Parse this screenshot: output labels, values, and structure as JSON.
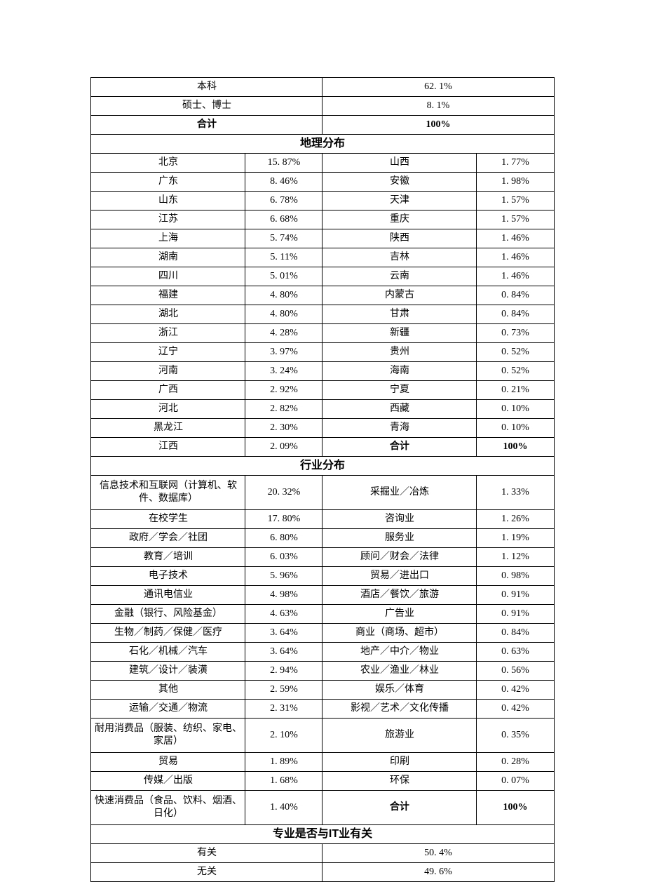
{
  "education": {
    "rows": [
      {
        "label": "本科",
        "value": "62. 1%"
      },
      {
        "label": "硕士、博士",
        "value": "8. 1%"
      }
    ],
    "total_label": "合计",
    "total_value": "100%"
  },
  "geo": {
    "header": "地理分布",
    "rows": [
      [
        "北京",
        "15. 87%",
        "山西",
        "1. 77%"
      ],
      [
        "广东",
        "8. 46%",
        "安徽",
        "1. 98%"
      ],
      [
        "山东",
        "6. 78%",
        "天津",
        "1. 57%"
      ],
      [
        "江苏",
        "6. 68%",
        "重庆",
        "1. 57%"
      ],
      [
        "上海",
        "5. 74%",
        "陕西",
        "1. 46%"
      ],
      [
        "湖南",
        "5. 11%",
        "吉林",
        "1. 46%"
      ],
      [
        "四川",
        "5. 01%",
        "云南",
        "1. 46%"
      ],
      [
        "福建",
        "4. 80%",
        "内蒙古",
        "0. 84%"
      ],
      [
        "湖北",
        "4. 80%",
        "甘肃",
        "0. 84%"
      ],
      [
        "浙江",
        "4. 28%",
        "新疆",
        "0. 73%"
      ],
      [
        "辽宁",
        "3. 97%",
        "贵州",
        "0. 52%"
      ],
      [
        "河南",
        "3. 24%",
        "海南",
        "0. 52%"
      ],
      [
        "广西",
        "2. 92%",
        "宁夏",
        "0. 21%"
      ],
      [
        "河北",
        "2. 82%",
        "西藏",
        "0. 10%"
      ],
      [
        "黑龙江",
        "2. 30%",
        "青海",
        "0. 10%"
      ]
    ],
    "last_row": [
      "江西",
      "2. 09%",
      "合计",
      "100%"
    ]
  },
  "industry": {
    "header": "行业分布",
    "rows": [
      {
        "a": "信息技术和互联网（计算机、软件、数据库）",
        "av": "20. 32%",
        "b": "采掘业／冶炼",
        "bv": "1. 33%",
        "tall": true
      },
      {
        "a": "在校学生",
        "av": "17. 80%",
        "b": "咨询业",
        "bv": "1. 26%"
      },
      {
        "a": "政府／学会／社团",
        "av": "6. 80%",
        "b": "服务业",
        "bv": "1. 19%"
      },
      {
        "a": "教育／培训",
        "av": "6. 03%",
        "b": "顾问／财会／法律",
        "bv": "1. 12%"
      },
      {
        "a": "电子技术",
        "av": "5. 96%",
        "b": "贸易／进出口",
        "bv": "0. 98%"
      },
      {
        "a": "通讯电信业",
        "av": "4. 98%",
        "b": "酒店／餐饮／旅游",
        "bv": "0. 91%"
      },
      {
        "a": "金融（银行、风险基金）",
        "av": "4. 63%",
        "b": "广告业",
        "bv": "0. 91%"
      },
      {
        "a": "生物／制药／保健／医疗",
        "av": "3. 64%",
        "b": "商业（商场、超市）",
        "bv": "0. 84%"
      },
      {
        "a": "石化／机械／汽车",
        "av": "3. 64%",
        "b": "地产／中介／物业",
        "bv": "0. 63%"
      },
      {
        "a": "建筑／设计／装潢",
        "av": "2. 94%",
        "b": "农业／渔业／林业",
        "bv": "0. 56%"
      },
      {
        "a": "其他",
        "av": "2. 59%",
        "b": "娱乐／体育",
        "bv": "0. 42%"
      },
      {
        "a": "运输／交通／物流",
        "av": "2. 31%",
        "b": "影视／艺术／文化传播",
        "bv": "0. 42%"
      },
      {
        "a": "耐用消费品（服装、纺织、家电、家居）",
        "av": "2. 10%",
        "b": "旅游业",
        "bv": "0. 35%",
        "tall": true
      },
      {
        "a": "贸易",
        "av": "1. 89%",
        "b": "印刷",
        "bv": "0. 28%"
      },
      {
        "a": "传媒／出版",
        "av": "1. 68%",
        "b": "环保",
        "bv": "0. 07%"
      }
    ],
    "last_row": {
      "a": "快速消费品（食品、饮料、烟酒、日化）",
      "av": "1. 40%",
      "b": "合计",
      "bv": "100%",
      "tall": true
    }
  },
  "it_related": {
    "header": "专业是否与IT业有关",
    "rows": [
      {
        "label": "有关",
        "value": "50. 4%"
      },
      {
        "label": "无关",
        "value": "49. 6%"
      }
    ]
  }
}
